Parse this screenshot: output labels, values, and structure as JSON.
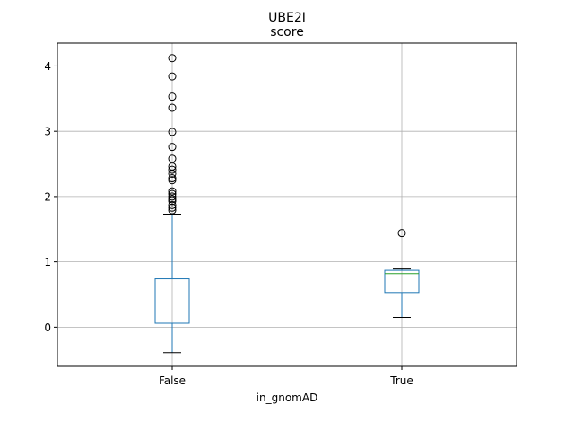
{
  "chart_data": {
    "type": "box",
    "title": "UBE2I",
    "subtitle": "score",
    "xlabel": "in_gnomAD",
    "ylabel": "",
    "ylim": [
      -0.6,
      4.35
    ],
    "yticks": [
      0,
      1,
      2,
      3,
      4
    ],
    "grid": true,
    "categories": [
      "False",
      "True"
    ],
    "boxes": [
      {
        "name": "False",
        "whisker_low": -0.39,
        "q1": 0.06,
        "median": 0.37,
        "q3": 0.74,
        "whisker_high": 1.73,
        "outliers": [
          4.12,
          3.84,
          3.53,
          3.36,
          2.99,
          2.76,
          2.58,
          2.46,
          2.41,
          2.35,
          2.28,
          2.25,
          2.08,
          2.04,
          2.0,
          1.96,
          1.93,
          1.87,
          1.83,
          1.79
        ]
      },
      {
        "name": "True",
        "whisker_low": 0.15,
        "q1": 0.53,
        "median": 0.82,
        "q3": 0.87,
        "whisker_high": 0.89,
        "outliers": [
          1.44
        ]
      }
    ],
    "colors": {
      "box": "#1f77b4",
      "median": "#2ca02c",
      "whisker_cap": "#000000",
      "grid": "#b0b0b0",
      "outlier_edge": "#000000"
    }
  }
}
